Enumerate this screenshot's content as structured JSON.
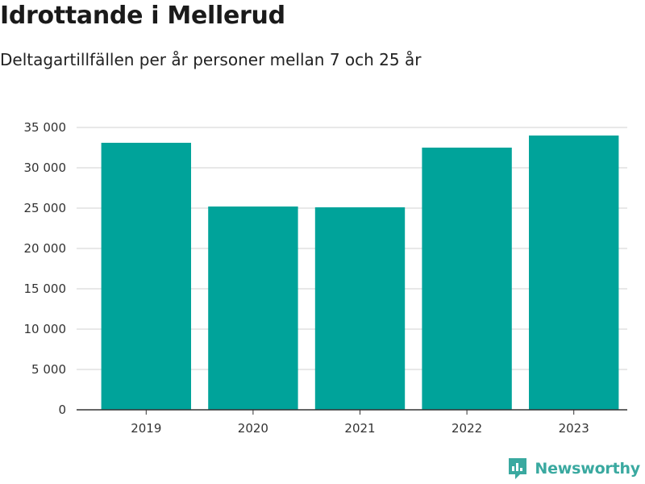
{
  "chart_data": {
    "type": "bar",
    "title": "Idrottande i Mellerud",
    "subtitle": "Deltagartillfällen per år personer mellan 7 och 25 år",
    "categories": [
      "2019",
      "2020",
      "2021",
      "2022",
      "2023"
    ],
    "values": [
      33100,
      25200,
      25100,
      32500,
      34000
    ],
    "ylim": [
      0,
      35000
    ],
    "yticks": [
      0,
      5000,
      10000,
      15000,
      20000,
      25000,
      30000,
      35000
    ],
    "ytick_labels": [
      "0",
      "5 000",
      "10 000",
      "15 000",
      "20 000",
      "25 000",
      "30 000",
      "35 000"
    ],
    "xlabel": "",
    "ylabel": "",
    "grid": true,
    "bar_color": "#00a39a"
  },
  "branding": {
    "name": "Newsworthy",
    "icon": "newsworthy-logo-icon",
    "color": "#3aa9a0"
  }
}
